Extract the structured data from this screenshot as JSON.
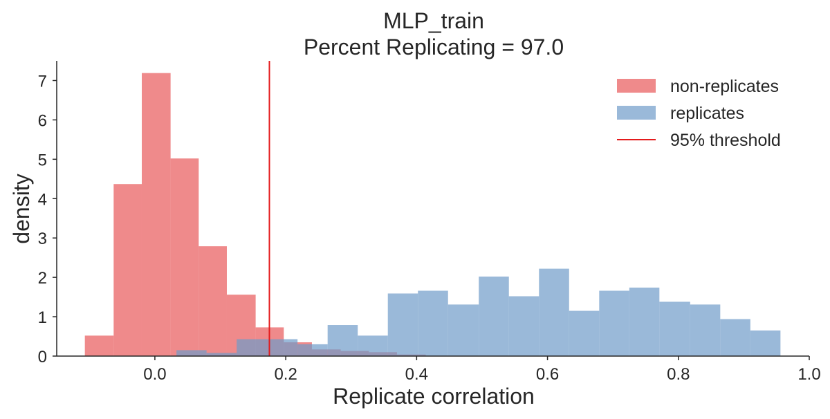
{
  "chart_data": {
    "type": "histogram",
    "title": "MLP_train",
    "subtitle": "Percent Replicating = 97.0",
    "xlabel": "Replicate correlation",
    "ylabel": "density",
    "xlim": [
      -0.15,
      1.0
    ],
    "ylim": [
      0,
      7.5
    ],
    "xticks": [
      0.0,
      0.2,
      0.4,
      0.6,
      0.8,
      1.0
    ],
    "xtick_labels": [
      "0.0",
      "0.2",
      "0.4",
      "0.6",
      "0.8",
      "1.0"
    ],
    "yticks": [
      0,
      1,
      2,
      3,
      4,
      5,
      6,
      7
    ],
    "ytick_labels": [
      "0",
      "1",
      "2",
      "3",
      "4",
      "5",
      "6",
      "7"
    ],
    "grid": false,
    "legend_position": "top-right",
    "series": [
      {
        "name": "non-replicates",
        "color": "#E8595A",
        "opacity": 0.7,
        "bins": [
          [
            -0.107,
            -0.063,
            0.52
          ],
          [
            -0.063,
            -0.02,
            4.37
          ],
          [
            -0.02,
            0.024,
            7.19
          ],
          [
            0.024,
            0.067,
            5.02
          ],
          [
            0.067,
            0.11,
            2.79
          ],
          [
            0.11,
            0.154,
            1.56
          ],
          [
            0.154,
            0.197,
            0.73
          ],
          [
            0.197,
            0.24,
            0.35
          ],
          [
            0.24,
            0.284,
            0.17
          ],
          [
            0.284,
            0.327,
            0.13
          ],
          [
            0.327,
            0.37,
            0.1
          ],
          [
            0.37,
            0.414,
            0.04
          ]
        ]
      },
      {
        "name": "replicates",
        "color": "#6F9BC9",
        "opacity": 0.7,
        "bins": [
          [
            0.033,
            0.079,
            0.15
          ],
          [
            0.079,
            0.125,
            0.08
          ],
          [
            0.125,
            0.172,
            0.43
          ],
          [
            0.172,
            0.218,
            0.43
          ],
          [
            0.218,
            0.264,
            0.3
          ],
          [
            0.264,
            0.31,
            0.79
          ],
          [
            0.31,
            0.356,
            0.52
          ],
          [
            0.356,
            0.402,
            1.59
          ],
          [
            0.402,
            0.448,
            1.66
          ],
          [
            0.448,
            0.495,
            1.31
          ],
          [
            0.495,
            0.541,
            2.02
          ],
          [
            0.541,
            0.587,
            1.52
          ],
          [
            0.587,
            0.633,
            2.22
          ],
          [
            0.633,
            0.679,
            1.15
          ],
          [
            0.679,
            0.725,
            1.66
          ],
          [
            0.725,
            0.771,
            1.74
          ],
          [
            0.771,
            0.818,
            1.38
          ],
          [
            0.818,
            0.864,
            1.31
          ],
          [
            0.864,
            0.91,
            0.94
          ],
          [
            0.91,
            0.956,
            0.65
          ]
        ]
      }
    ],
    "threshold": {
      "name": "95% threshold",
      "x": 0.175,
      "color": "#E41A1C"
    }
  }
}
